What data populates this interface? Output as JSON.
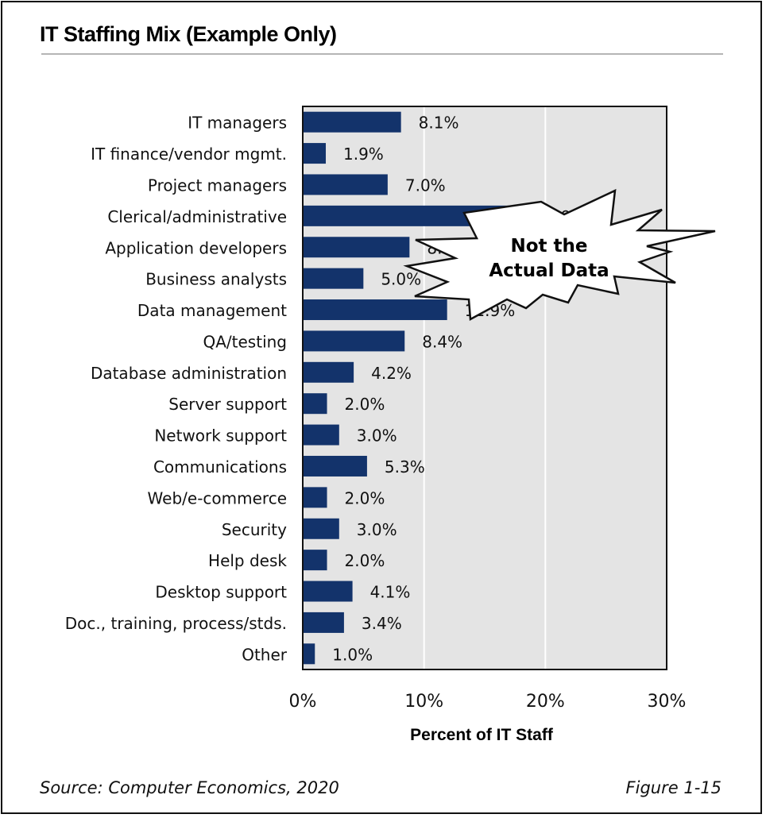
{
  "chart_data": {
    "type": "bar",
    "orientation": "horizontal",
    "title": "IT Staffing Mix (Example Only)",
    "xlabel": "Percent of IT Staff",
    "ylabel": "",
    "xlim": [
      0,
      30
    ],
    "x_ticks": [
      "0%",
      "10%",
      "20%",
      "30%"
    ],
    "grid": true,
    "categories": [
      "IT managers",
      "IT finance/vendor mgmt.",
      "Project managers",
      "Clerical/administrative",
      "Application developers",
      "Business analysts",
      "Data management",
      "QA/testing",
      "Database administration",
      "Server support",
      "Network support",
      "Communications",
      "Web/e-commerce",
      "Security",
      "Help desk",
      "Desktop support",
      "Doc., training, process/stds.",
      "Other"
    ],
    "values": [
      8.1,
      1.9,
      7.0,
      19.0,
      8.8,
      5.0,
      11.9,
      8.4,
      4.2,
      2.0,
      3.0,
      5.3,
      2.0,
      3.0,
      2.0,
      4.1,
      3.4,
      1.0
    ],
    "data_labels": [
      "8.1%",
      "1.9%",
      "7.0%",
      "19.0%",
      "8.8%",
      "5.0%",
      "11.9%",
      "8.4%",
      "4.2%",
      "2.0%",
      "3.0%",
      "5.3%",
      "2.0%",
      "3.0%",
      "2.0%",
      "4.1%",
      "3.4%",
      "1.0%"
    ],
    "annotation": "Not the Actual Data",
    "annotation_lines": [
      "Not the",
      "Actual Data"
    ],
    "colors": {
      "bar": "#13336b",
      "plot_background": "#e4e4e4",
      "gridline": "#ffffff"
    }
  },
  "footer": {
    "source": "Source: Computer Economics, 2020",
    "figure": "Figure 1-15"
  }
}
